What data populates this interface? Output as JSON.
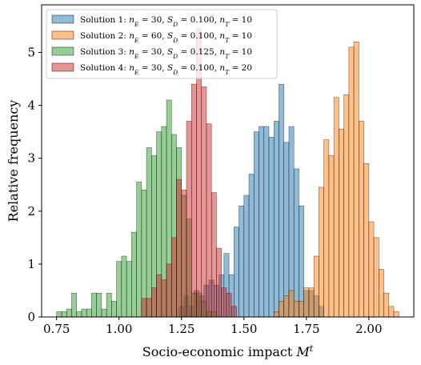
{
  "chart_data": {
    "type": "histogram",
    "title": "",
    "xlabel": "Socio-economic impact M^t",
    "ylabel": "Relative frequency",
    "xlim": [
      0.69,
      2.18
    ],
    "ylim": [
      0,
      5.9
    ],
    "xticks": [
      0.75,
      1.0,
      1.25,
      1.5,
      1.75,
      2.0
    ],
    "xtick_labels": [
      "0.75",
      "1.00",
      "1.25",
      "1.50",
      "1.75",
      "2.00"
    ],
    "yticks": [
      0,
      1,
      2,
      3,
      4,
      5
    ],
    "ytick_labels": [
      "0",
      "1",
      "2",
      "3",
      "4",
      "5"
    ],
    "legend_position": "top-left",
    "grid": false,
    "series": [
      {
        "name": "Solution 1: n_E = 30, S_D = 0.100, n_T = 10",
        "color": "#1f77b4",
        "bins": [
          {
            "x0": 1.24,
            "x1": 1.26,
            "y": 0.2
          },
          {
            "x0": 1.26,
            "x1": 1.28,
            "y": 0.4
          },
          {
            "x0": 1.28,
            "x1": 1.3,
            "y": 0.2
          },
          {
            "x0": 1.3,
            "x1": 1.32,
            "y": 0.5
          },
          {
            "x0": 1.32,
            "x1": 1.34,
            "y": 0.4
          },
          {
            "x0": 1.34,
            "x1": 1.36,
            "y": 0.6
          },
          {
            "x0": 1.36,
            "x1": 1.38,
            "y": 0.7
          },
          {
            "x0": 1.38,
            "x1": 1.4,
            "y": 0.6
          },
          {
            "x0": 1.4,
            "x1": 1.42,
            "y": 0.8
          },
          {
            "x0": 1.42,
            "x1": 1.44,
            "y": 1.2
          },
          {
            "x0": 1.44,
            "x1": 1.46,
            "y": 0.8
          },
          {
            "x0": 1.46,
            "x1": 1.48,
            "y": 1.7
          },
          {
            "x0": 1.48,
            "x1": 1.5,
            "y": 2.1
          },
          {
            "x0": 1.5,
            "x1": 1.52,
            "y": 2.3
          },
          {
            "x0": 1.52,
            "x1": 1.54,
            "y": 2.7
          },
          {
            "x0": 1.54,
            "x1": 1.56,
            "y": 3.5
          },
          {
            "x0": 1.56,
            "x1": 1.58,
            "y": 3.6
          },
          {
            "x0": 1.58,
            "x1": 1.6,
            "y": 3.6
          },
          {
            "x0": 1.6,
            "x1": 1.62,
            "y": 3.4
          },
          {
            "x0": 1.62,
            "x1": 1.64,
            "y": 3.7
          },
          {
            "x0": 1.64,
            "x1": 1.66,
            "y": 4.4
          },
          {
            "x0": 1.66,
            "x1": 1.68,
            "y": 3.3
          },
          {
            "x0": 1.68,
            "x1": 1.7,
            "y": 3.6
          },
          {
            "x0": 1.7,
            "x1": 1.72,
            "y": 2.8
          },
          {
            "x0": 1.72,
            "x1": 1.74,
            "y": 2.1
          },
          {
            "x0": 1.74,
            "x1": 1.76,
            "y": 0.5
          },
          {
            "x0": 1.76,
            "x1": 1.78,
            "y": 0.5
          },
          {
            "x0": 1.78,
            "x1": 1.8,
            "y": 0.4
          },
          {
            "x0": 1.8,
            "x1": 1.82,
            "y": 0.2
          }
        ]
      },
      {
        "name": "Solution 2: n_E = 60, S_D = 0.100, n_T = 10",
        "color": "#ff7f0e",
        "bins": [
          {
            "x0": 1.62,
            "x1": 1.64,
            "y": 0.1
          },
          {
            "x0": 1.64,
            "x1": 1.66,
            "y": 0.3
          },
          {
            "x0": 1.66,
            "x1": 1.68,
            "y": 0.4
          },
          {
            "x0": 1.68,
            "x1": 1.7,
            "y": 0.5
          },
          {
            "x0": 1.7,
            "x1": 1.72,
            "y": 0.3
          },
          {
            "x0": 1.72,
            "x1": 1.74,
            "y": 0.3
          },
          {
            "x0": 1.74,
            "x1": 1.76,
            "y": 0.55
          },
          {
            "x0": 1.76,
            "x1": 1.78,
            "y": 0.55
          },
          {
            "x0": 1.78,
            "x1": 1.8,
            "y": 1.15
          },
          {
            "x0": 1.8,
            "x1": 1.82,
            "y": 2.45
          },
          {
            "x0": 1.82,
            "x1": 1.84,
            "y": 3.35
          },
          {
            "x0": 1.84,
            "x1": 1.86,
            "y": 3.05
          },
          {
            "x0": 1.86,
            "x1": 1.88,
            "y": 4.15
          },
          {
            "x0": 1.88,
            "x1": 1.9,
            "y": 3.55
          },
          {
            "x0": 1.9,
            "x1": 1.92,
            "y": 4.2
          },
          {
            "x0": 1.92,
            "x1": 1.94,
            "y": 5.1
          },
          {
            "x0": 1.94,
            "x1": 1.96,
            "y": 5.2
          },
          {
            "x0": 1.96,
            "x1": 1.98,
            "y": 3.7
          },
          {
            "x0": 1.98,
            "x1": 2.0,
            "y": 2.9
          },
          {
            "x0": 2.0,
            "x1": 2.02,
            "y": 1.8
          },
          {
            "x0": 2.02,
            "x1": 2.04,
            "y": 1.5
          },
          {
            "x0": 2.04,
            "x1": 2.06,
            "y": 0.9
          },
          {
            "x0": 2.06,
            "x1": 2.08,
            "y": 0.45
          },
          {
            "x0": 2.08,
            "x1": 2.1,
            "y": 0.2
          },
          {
            "x0": 2.1,
            "x1": 2.12,
            "y": 0.1
          }
        ]
      },
      {
        "name": "Solution 3: n_E = 30, S_D = 0.125, n_T = 10",
        "color": "#2ca02c",
        "bins": [
          {
            "x0": 0.75,
            "x1": 0.77,
            "y": 0.1
          },
          {
            "x0": 0.77,
            "x1": 0.79,
            "y": 0.1
          },
          {
            "x0": 0.79,
            "x1": 0.81,
            "y": 0.15
          },
          {
            "x0": 0.81,
            "x1": 0.83,
            "y": 0.45
          },
          {
            "x0": 0.83,
            "x1": 0.85,
            "y": 0.1
          },
          {
            "x0": 0.85,
            "x1": 0.87,
            "y": 0.15
          },
          {
            "x0": 0.87,
            "x1": 0.89,
            "y": 0.15
          },
          {
            "x0": 0.89,
            "x1": 0.91,
            "y": 0.45
          },
          {
            "x0": 0.91,
            "x1": 0.93,
            "y": 0.45
          },
          {
            "x0": 0.93,
            "x1": 0.95,
            "y": 0.15
          },
          {
            "x0": 0.95,
            "x1": 0.97,
            "y": 0.45
          },
          {
            "x0": 0.97,
            "x1": 0.99,
            "y": 0.3
          },
          {
            "x0": 0.99,
            "x1": 1.01,
            "y": 1.05
          },
          {
            "x0": 1.01,
            "x1": 1.03,
            "y": 1.15
          },
          {
            "x0": 1.03,
            "x1": 1.05,
            "y": 1.05
          },
          {
            "x0": 1.05,
            "x1": 1.07,
            "y": 1.6
          },
          {
            "x0": 1.07,
            "x1": 1.09,
            "y": 2.55
          },
          {
            "x0": 1.09,
            "x1": 1.11,
            "y": 2.4
          },
          {
            "x0": 1.11,
            "x1": 1.13,
            "y": 3.2
          },
          {
            "x0": 1.13,
            "x1": 1.15,
            "y": 3.05
          },
          {
            "x0": 1.15,
            "x1": 1.17,
            "y": 3.5
          },
          {
            "x0": 1.17,
            "x1": 1.19,
            "y": 3.6
          },
          {
            "x0": 1.19,
            "x1": 1.21,
            "y": 4.1
          },
          {
            "x0": 1.21,
            "x1": 1.23,
            "y": 3.45
          },
          {
            "x0": 1.23,
            "x1": 1.25,
            "y": 3.2
          },
          {
            "x0": 1.25,
            "x1": 1.27,
            "y": 2.3
          },
          {
            "x0": 1.27,
            "x1": 1.29,
            "y": 1.85
          },
          {
            "x0": 1.29,
            "x1": 1.31,
            "y": 0.45
          },
          {
            "x0": 1.31,
            "x1": 1.33,
            "y": 0.45
          },
          {
            "x0": 1.33,
            "x1": 1.35,
            "y": 0.3
          },
          {
            "x0": 1.35,
            "x1": 1.37,
            "y": 0.1
          },
          {
            "x0": 1.37,
            "x1": 1.39,
            "y": 0.1
          }
        ]
      },
      {
        "name": "Solution 4: n_E = 30, S_D = 0.100, n_T = 20",
        "color": "#d62728",
        "bins": [
          {
            "x0": 1.09,
            "x1": 1.11,
            "y": 0.35
          },
          {
            "x0": 1.11,
            "x1": 1.13,
            "y": 0.35
          },
          {
            "x0": 1.13,
            "x1": 1.15,
            "y": 0.55
          },
          {
            "x0": 1.15,
            "x1": 1.17,
            "y": 0.8
          },
          {
            "x0": 1.17,
            "x1": 1.19,
            "y": 0.7
          },
          {
            "x0": 1.19,
            "x1": 1.21,
            "y": 1.0
          },
          {
            "x0": 1.21,
            "x1": 1.23,
            "y": 1.5
          },
          {
            "x0": 1.23,
            "x1": 1.25,
            "y": 2.6
          },
          {
            "x0": 1.25,
            "x1": 1.27,
            "y": 2.4
          },
          {
            "x0": 1.27,
            "x1": 1.29,
            "y": 3.7
          },
          {
            "x0": 1.29,
            "x1": 1.31,
            "y": 4.4
          },
          {
            "x0": 1.31,
            "x1": 1.33,
            "y": 5.45
          },
          {
            "x0": 1.33,
            "x1": 1.35,
            "y": 4.35
          },
          {
            "x0": 1.35,
            "x1": 1.37,
            "y": 3.65
          },
          {
            "x0": 1.37,
            "x1": 1.39,
            "y": 2.35
          },
          {
            "x0": 1.39,
            "x1": 1.41,
            "y": 1.3
          },
          {
            "x0": 1.41,
            "x1": 1.43,
            "y": 0.55
          },
          {
            "x0": 1.43,
            "x1": 1.45,
            "y": 0.45
          },
          {
            "x0": 1.45,
            "x1": 1.47,
            "y": 0.2
          }
        ]
      }
    ]
  },
  "legend": {
    "items": [
      {
        "prefix": "Solution 1: ",
        "nE": "30",
        "SD": "0.100",
        "nT": "10"
      },
      {
        "prefix": "Solution 2: ",
        "nE": "60",
        "SD": "0.100",
        "nT": "10"
      },
      {
        "prefix": "Solution 3: ",
        "nE": "30",
        "SD": "0.125",
        "nT": "10"
      },
      {
        "prefix": "Solution 4: ",
        "nE": "30",
        "SD": "0.100",
        "nT": "20"
      }
    ]
  }
}
